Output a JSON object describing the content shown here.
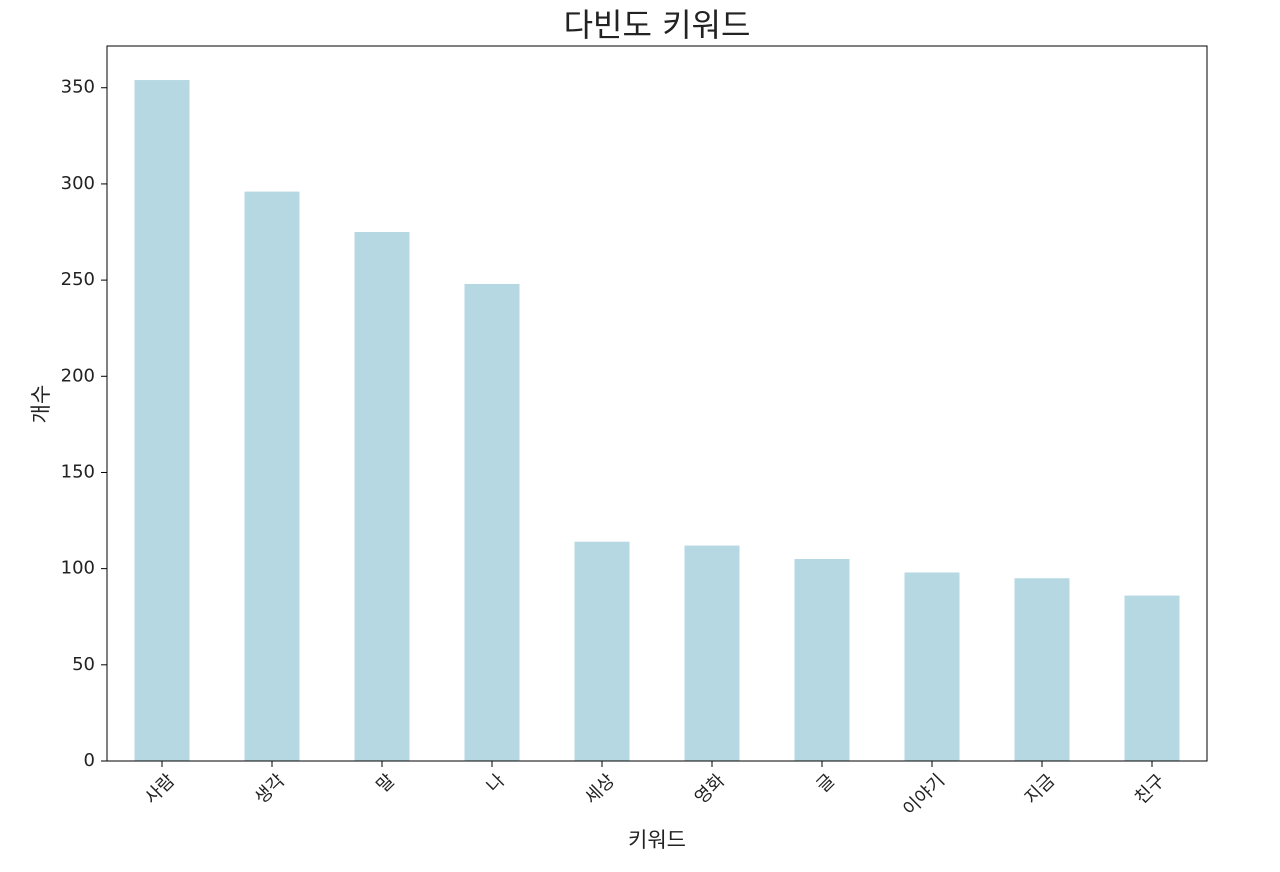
{
  "chart_data": {
    "type": "bar",
    "title": "다빈도 키워드",
    "x_label": "키워드",
    "y_label": "개수",
    "categories": [
      "사람",
      "생각",
      "말",
      "나",
      "세상",
      "영화",
      "글",
      "이야기",
      "지금",
      "친구"
    ],
    "values": [
      354,
      296,
      275,
      248,
      114,
      112,
      105,
      98,
      95,
      86
    ],
    "color": "#b5d8e3",
    "ylim": [
      0,
      371.7
    ],
    "yticks": [
      0,
      50,
      100,
      150,
      200,
      250,
      300,
      350
    ],
    "grid": false
  }
}
